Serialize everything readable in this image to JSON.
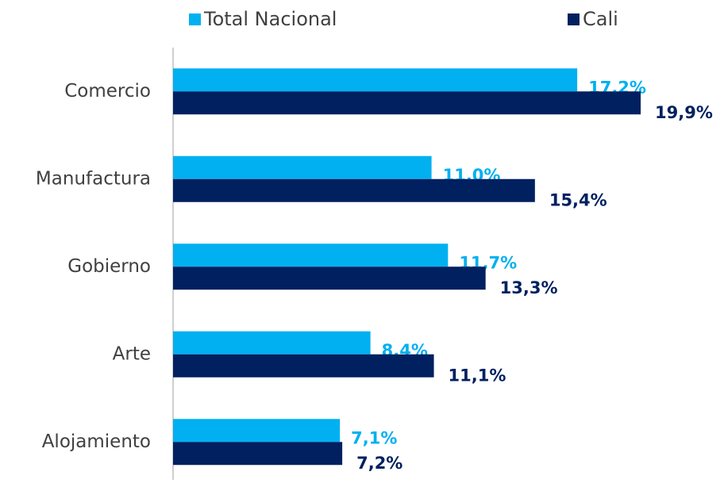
{
  "chart_data": {
    "type": "hbar",
    "categories": [
      "Comercio",
      "Manufactura",
      "Gobierno",
      "Arte",
      "Alojamiento"
    ],
    "series": [
      {
        "name": "Total Nacional",
        "color": "#00b0f0",
        "values": [
          17.2,
          11.0,
          11.7,
          8.4,
          7.1
        ],
        "value_labels": [
          "17,2%",
          "11,0%",
          "11,7%",
          "8,4%",
          "7,1%"
        ]
      },
      {
        "name": "Cali",
        "color": "#002060",
        "values": [
          19.9,
          15.4,
          13.3,
          11.1,
          7.2
        ],
        "value_labels": [
          "19,9%",
          "15,4%",
          "13,3%",
          "11,1%",
          "7,2%"
        ]
      }
    ],
    "legend": "top"
  }
}
